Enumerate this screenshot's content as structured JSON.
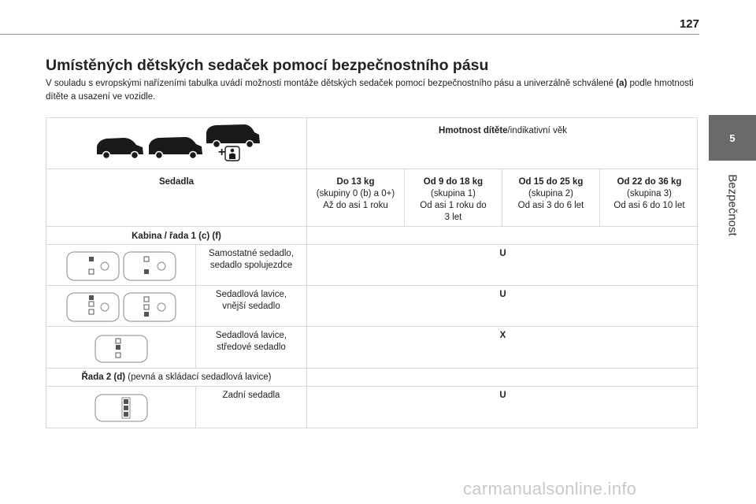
{
  "page": {
    "number": "127"
  },
  "side_tab": {
    "chapter": "5",
    "label": "Bezpečnost"
  },
  "title": "Umístěných dětských sedaček pomocí bezpečnostního pásu",
  "intro": {
    "text_before": "V souladu s evropskými nařízeními tabulka uvádí možnosti montáže dětských sedaček pomocí bezpečnostního pásu a univerzálně schválené ",
    "bold": "(a)",
    "text_after": " podle hmotnosti dítěte a usazení ve vozidle."
  },
  "table": {
    "header_weight": {
      "bold": "Hmotnost dítěte",
      "rest": "/indikativní věk"
    },
    "seats_label": "Sedadla",
    "columns": [
      {
        "weight": "Do 13 kg",
        "group": "(skupiny 0 (b) a 0+)",
        "age": "Až do asi 1 roku"
      },
      {
        "weight": "Od 9 do 18 kg",
        "group": "(skupina 1)",
        "age": "Od asi 1 roku do 3 let"
      },
      {
        "weight": "Od 15 do 25 kg",
        "group": "(skupina 2)",
        "age": "Od asi 3 do 6 let"
      },
      {
        "weight": "Od 22 do 36 kg",
        "group": "(skupina 3)",
        "age": "Od asi 6 do 10 let"
      }
    ],
    "section_cabin": {
      "bold": "Kabina / řada 1 (c) (f)",
      "rest": ""
    },
    "row_1": {
      "seat_line1": "Samostatné sedadlo,",
      "seat_line2": "sedadlo spolujezdce",
      "value": "U"
    },
    "row_2": {
      "seat_line1": "Sedadlová lavice,",
      "seat_line2": "vnější sedadlo",
      "value": "U"
    },
    "row_3": {
      "seat_line1": "Sedadlová lavice,",
      "seat_line2": "středové sedadlo",
      "value": "X"
    },
    "section_row2": {
      "bold": "Řada 2 (d)",
      "rest": " (pevná a skládací sedadlová lavice)"
    },
    "row_4": {
      "seat_line1": "Zadní sedadla",
      "value": "U"
    }
  },
  "footer": {
    "watermark": "carmanualsonline.info"
  }
}
